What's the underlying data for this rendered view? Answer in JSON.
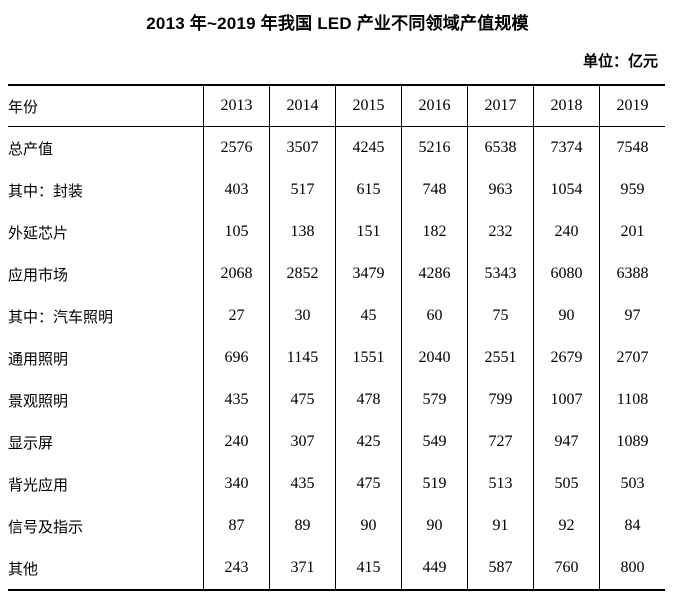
{
  "page": {
    "unit_label": "单位：亿元"
  },
  "chart_data": {
    "type": "table",
    "title": "2013 年~2019 年我国 LED 产业不同领域产值规模",
    "unit": "亿元",
    "header": {
      "label": "年份",
      "years": [
        "2013",
        "2014",
        "2015",
        "2016",
        "2017",
        "2018",
        "2019"
      ]
    },
    "rows": [
      {
        "label": "总产值",
        "indent": 0,
        "values": [
          2576,
          3507,
          4245,
          5216,
          6538,
          7374,
          7548
        ]
      },
      {
        "label": "其中：封装",
        "indent": 0,
        "values": [
          403,
          517,
          615,
          748,
          963,
          1054,
          959
        ]
      },
      {
        "label": "外延芯片",
        "indent": 1,
        "values": [
          105,
          138,
          151,
          182,
          232,
          240,
          201
        ]
      },
      {
        "label": "应用市场",
        "indent": 1,
        "values": [
          2068,
          2852,
          3479,
          4286,
          5343,
          6080,
          6388
        ]
      },
      {
        "label": "其中：汽车照明",
        "indent": 1,
        "values": [
          27,
          30,
          45,
          60,
          75,
          90,
          97
        ]
      },
      {
        "label": "通用照明",
        "indent": 2,
        "values": [
          696,
          1145,
          1551,
          2040,
          2551,
          2679,
          2707
        ]
      },
      {
        "label": "景观照明",
        "indent": 2,
        "values": [
          435,
          475,
          478,
          579,
          799,
          1007,
          1108
        ]
      },
      {
        "label": "显示屏",
        "indent": 2,
        "values": [
          240,
          307,
          425,
          549,
          727,
          947,
          1089
        ]
      },
      {
        "label": "背光应用",
        "indent": 2,
        "values": [
          340,
          435,
          475,
          519,
          513,
          505,
          503
        ]
      },
      {
        "label": "信号及指示",
        "indent": 2,
        "values": [
          87,
          89,
          90,
          90,
          91,
          92,
          84
        ]
      },
      {
        "label": "其他",
        "indent": 2,
        "values": [
          243,
          371,
          415,
          449,
          587,
          760,
          800
        ]
      }
    ]
  }
}
